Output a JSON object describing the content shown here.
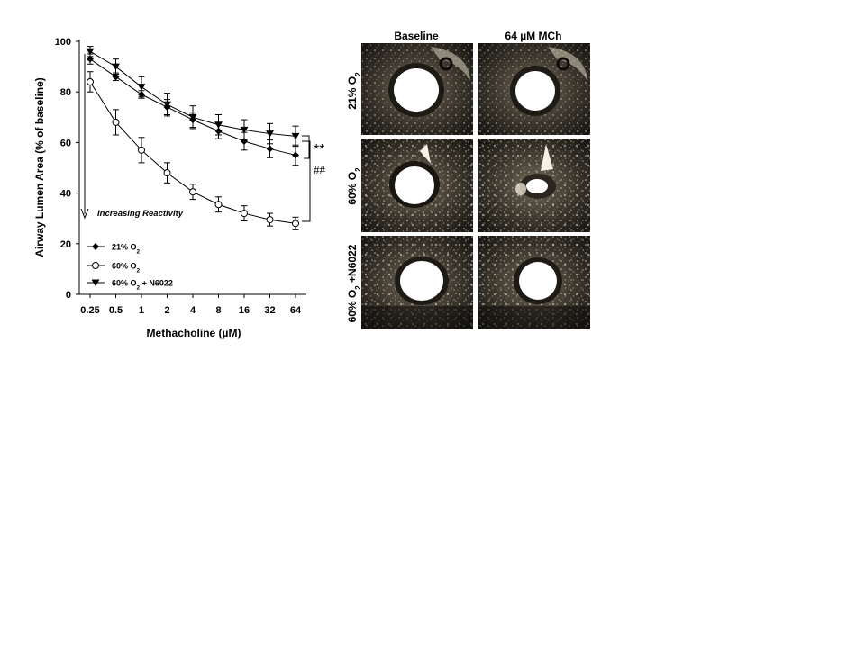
{
  "chart_data": {
    "type": "line",
    "x": [
      "0.25",
      "0.5",
      "1",
      "2",
      "4",
      "8",
      "16",
      "32",
      "64"
    ],
    "xlabel": "Methacholine (µM)",
    "ylabel": "Airway Lumen Area (% of baseline)",
    "ylim": [
      0,
      100
    ],
    "yticks": [
      "0",
      "20",
      "40",
      "60",
      "80",
      "100"
    ],
    "series": [
      {
        "legend_main": "21% O",
        "legend_sub": "2",
        "marker": "filled-diamond",
        "values": [
          93,
          86,
          79,
          74,
          69,
          64.5,
          60.5,
          57.5,
          55
        ],
        "errors": [
          2,
          1.5,
          1.5,
          3,
          3,
          3,
          3.5,
          3.5,
          4
        ]
      },
      {
        "legend_main": "60% O",
        "legend_sub": "2",
        "marker": "open-circle",
        "values": [
          84,
          68,
          57,
          48,
          40.5,
          35.5,
          32,
          29.5,
          28
        ],
        "errors": [
          4,
          5,
          5,
          4,
          3,
          3,
          3,
          2.5,
          2.5
        ]
      },
      {
        "legend_main": "60% O",
        "legend_sub": "2",
        "legend_suffix": " + N6022",
        "marker": "filled-triangle-down",
        "values": [
          96,
          90,
          82,
          75,
          70,
          67,
          65,
          63.5,
          62.5
        ],
        "errors": [
          2,
          3,
          4,
          4.5,
          4.5,
          4,
          4,
          4,
          4
        ]
      }
    ],
    "annotations": {
      "arrow_label": "Increasing Reactivity",
      "sig1": "**",
      "sig2": "##"
    }
  },
  "image_panel": {
    "columns": [
      "Baseline",
      "64 µM MCh"
    ],
    "rows": [
      {
        "main": "21% O",
        "sub": "2",
        "suffix": ""
      },
      {
        "main": "60% O",
        "sub": "2",
        "suffix": ""
      },
      {
        "main": "60% O",
        "sub": "2",
        "suffix": " +N6022"
      }
    ]
  }
}
